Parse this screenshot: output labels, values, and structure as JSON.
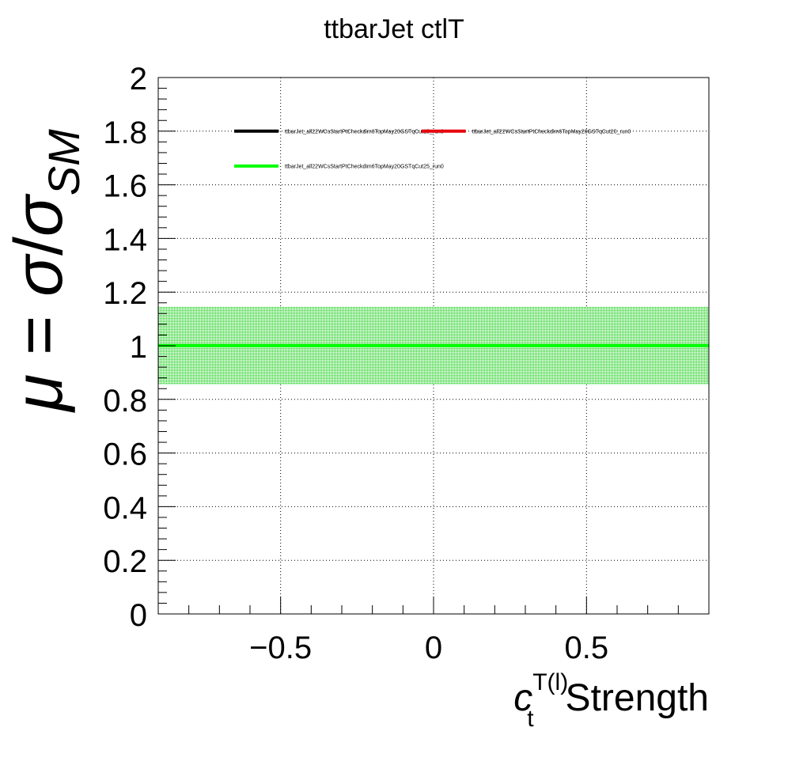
{
  "chart_data": {
    "type": "line",
    "title": "ttbarJet ctlT",
    "xlabel_symbol": "c",
    "xlabel_subscript": "t",
    "xlabel_superscript": "T(l)",
    "xlabel_suffix": "Strength",
    "ylabel_mu": "μ",
    "ylabel_eq": " = ",
    "ylabel_sigma": "σ",
    "ylabel_slash": "/",
    "ylabel_sub": "SM",
    "xlim": [
      -0.9,
      0.9
    ],
    "ylim": [
      0,
      2
    ],
    "x_ticks": [
      -0.5,
      0,
      0.5
    ],
    "x_tick_labels": [
      "−0.5",
      "0",
      "0.5"
    ],
    "y_ticks": [
      0,
      0.2,
      0.4,
      0.6,
      0.8,
      1,
      1.2,
      1.4,
      1.6,
      1.8,
      2
    ],
    "y_tick_labels": [
      "0",
      "0.2",
      "0.4",
      "0.6",
      "0.8",
      "1",
      "1.2",
      "1.4",
      "1.6",
      "1.8",
      "2"
    ],
    "grid": true,
    "legend_position": "top",
    "series": [
      {
        "name": "ttbarJet_all22WCsStartPtCheckdim6TopMay20GSTqCut15_run0",
        "color": "#000000",
        "x": [
          -0.9,
          0.9
        ],
        "y": [
          1.0,
          1.0
        ]
      },
      {
        "name": "ttbarJet_all22WCsStartPtCheckdim6TopMay20GSTqCut20_run0",
        "color": "#e8000b",
        "x": [
          -0.9,
          0.9
        ],
        "y": [
          1.0,
          1.0
        ]
      },
      {
        "name": "ttbarJet_all22WCsStartPtCheckdim6TopMay20GSTqCut25_run0",
        "color": "#00ff00",
        "x": [
          -0.9,
          0.9
        ],
        "y": [
          1.0,
          1.0
        ],
        "band": [
          0.855,
          1.145
        ]
      }
    ]
  }
}
